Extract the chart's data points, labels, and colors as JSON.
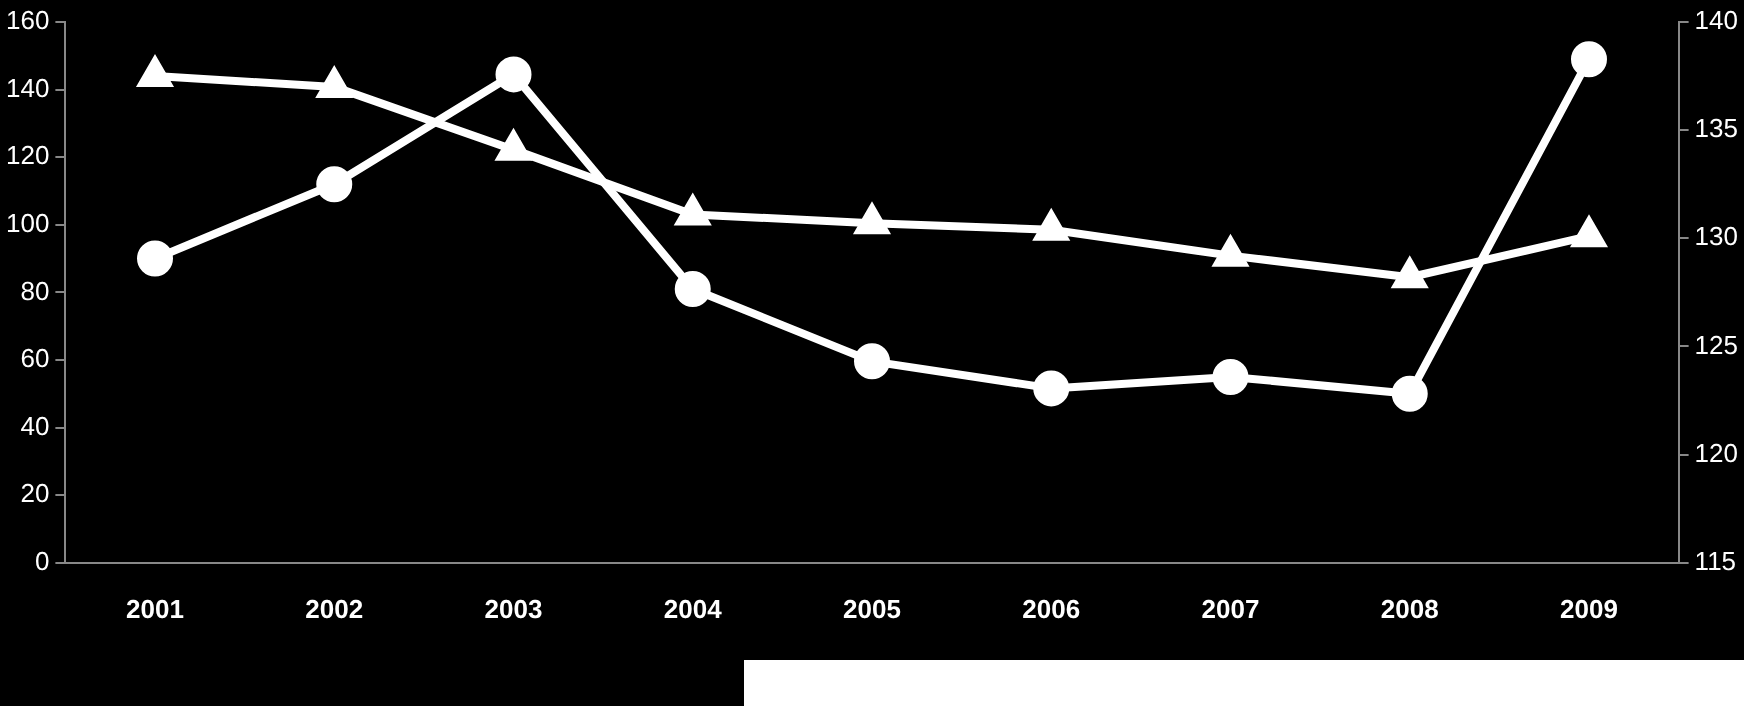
{
  "chart_data": {
    "type": "line",
    "categories": [
      "2001",
      "2002",
      "2003",
      "2004",
      "2005",
      "2006",
      "2007",
      "2008",
      "2009"
    ],
    "series": [
      {
        "color": "#ffffff",
        "marker": "circle",
        "values": [
          90,
          112,
          144.5,
          81,
          59.6,
          51.6,
          55,
          50,
          149
        ]
      },
      {
        "color": "#ffffff",
        "marker": "triangle",
        "axis": "y2",
        "values": [
          137.5,
          137,
          134.1,
          131.1,
          130.7,
          130.4,
          129.2,
          128.2,
          130.1
        ]
      }
    ],
    "ylim": [
      0,
      160
    ],
    "yticks": [
      0,
      20,
      40,
      60,
      80,
      100,
      120,
      140,
      160
    ],
    "y2lim": [
      115,
      140
    ],
    "y2ticks": [
      115,
      120,
      125,
      130,
      135,
      140
    ],
    "grid": false,
    "legend": false,
    "line_style": "solid"
  }
}
